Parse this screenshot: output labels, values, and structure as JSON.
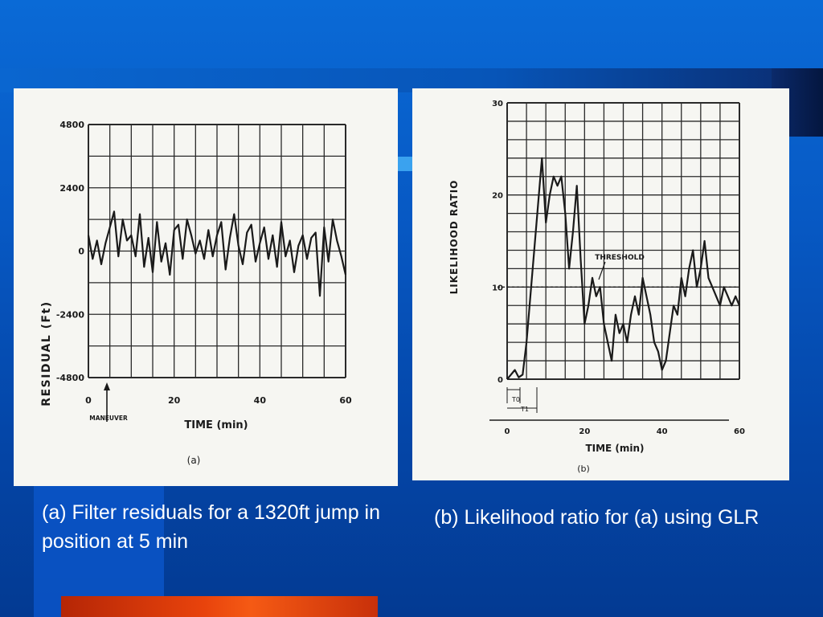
{
  "slide": {
    "caption_a": "(a) Filter residuals for a 1320ft jump in position at 5 min",
    "caption_b": "(b) Likelihood ratio for (a) using GLR",
    "colors": {
      "background": "#0759c4",
      "caption_text": "#ffffff",
      "accent_bar": "#e8430c",
      "trace": "#1a1a1a",
      "panel": "#f6f6f2"
    }
  },
  "chart_data": [
    {
      "type": "line",
      "panel_label": "(a)",
      "xlabel": "TIME (min)",
      "ylabel": "RESIDUAL (Ft)",
      "xlim": [
        0,
        60
      ],
      "ylim": [
        -4800,
        4800
      ],
      "x_ticks": [
        "0",
        "20",
        "40",
        "60"
      ],
      "y_ticks": [
        "4800",
        "2400",
        "0",
        "-2400",
        "-4800"
      ],
      "grid": true,
      "annotation": {
        "text": "MANEUVER",
        "x": 5
      },
      "series": [
        {
          "x": [
            0,
            1,
            2,
            3,
            4,
            5,
            6,
            7,
            8,
            9,
            10,
            11,
            12,
            13,
            14,
            15,
            16,
            17,
            18,
            19,
            20,
            21,
            22,
            23,
            24,
            25,
            26,
            27,
            28,
            29,
            30,
            31,
            32,
            33,
            34,
            35,
            36,
            37,
            38,
            39,
            40,
            41,
            42,
            43,
            44,
            45,
            46,
            47,
            48,
            49,
            50,
            51,
            52,
            53,
            54,
            55,
            56,
            57,
            58,
            59,
            60
          ],
          "y": [
            600,
            -300,
            400,
            -500,
            300,
            900,
            1500,
            -200,
            1200,
            400,
            600,
            -200,
            1400,
            -600,
            500,
            -800,
            1100,
            -400,
            300,
            -900,
            800,
            1000,
            -300,
            1200,
            600,
            -100,
            400,
            -300,
            800,
            -200,
            600,
            1100,
            -700,
            500,
            1400,
            200,
            -500,
            700,
            1000,
            -400,
            300,
            900,
            -300,
            600,
            -600,
            1100,
            -200,
            400,
            -800,
            200,
            600,
            -300,
            500,
            700,
            -1700,
            900,
            -400,
            1200,
            400,
            -200,
            -900
          ]
        }
      ]
    },
    {
      "type": "line",
      "panel_label": "(b)",
      "xlabel": "TIME (min)",
      "ylabel": "LIKELIHOOD RATIO",
      "xlim": [
        0,
        60
      ],
      "ylim": [
        0,
        30
      ],
      "x_ticks": [
        "0",
        "20",
        "40",
        "60"
      ],
      "y_ticks": [
        "0",
        "10",
        "20",
        "30"
      ],
      "grid": true,
      "threshold": {
        "label": "THRESHOLD",
        "value": 10
      },
      "interval_labels": [
        "T0",
        "T1"
      ],
      "series": [
        {
          "x": [
            0,
            1,
            2,
            3,
            4,
            5,
            6,
            7,
            8,
            9,
            10,
            11,
            12,
            13,
            14,
            15,
            16,
            17,
            18,
            19,
            20,
            21,
            22,
            23,
            24,
            25,
            26,
            27,
            28,
            29,
            30,
            31,
            32,
            33,
            34,
            35,
            36,
            37,
            38,
            39,
            40,
            41,
            42,
            43,
            44,
            45,
            46,
            47,
            48,
            49,
            50,
            51,
            52,
            53,
            54,
            55,
            56,
            57,
            58,
            59,
            60
          ],
          "y": [
            0,
            0.5,
            1,
            0.2,
            0.5,
            4,
            9,
            14,
            19,
            24,
            17,
            20,
            22,
            21,
            22,
            18,
            12,
            16,
            21,
            13,
            6,
            8,
            11,
            9,
            10,
            6,
            4,
            2,
            7,
            5,
            6,
            4,
            7,
            9,
            7,
            11,
            9,
            7,
            4,
            3,
            1,
            2,
            5,
            8,
            7,
            11,
            9,
            12,
            14,
            10,
            12,
            15,
            11,
            10,
            9,
            8,
            10,
            9,
            8,
            9,
            8
          ]
        }
      ]
    }
  ]
}
